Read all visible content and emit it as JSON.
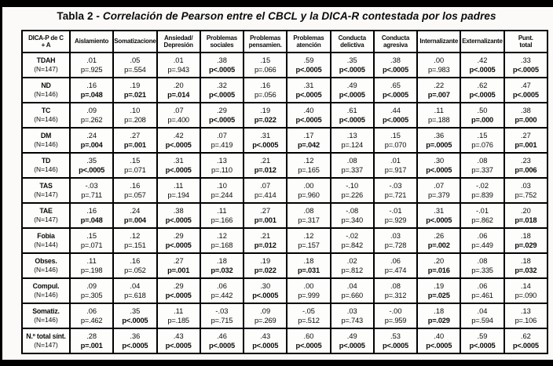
{
  "title": {
    "prefix": "Tabla 2 - ",
    "text": "Correlación de Pearson entre el CBCL y la DICA-R contestada por los padres"
  },
  "table": {
    "header": [
      "DICA-P de C\n+ A",
      "Aislamiento",
      "Somatizaciones",
      "Ansiedad/\nDepresión",
      "Problemas\nsociales",
      "Problemas\npensamien.",
      "Problemas\natención",
      "Conducta\ndelictiva",
      "Conducta\nagresiva",
      "Internalizante",
      "Externalizante",
      "Punt.\ntotal"
    ],
    "rows": [
      {
        "label": "TDAH",
        "n": "(N=147)",
        "cells": [
          {
            "r": ".01",
            "p": "p=.925",
            "sig": false
          },
          {
            "r": ".05",
            "p": "p=.554",
            "sig": false
          },
          {
            "r": ".01",
            "p": "p=.943",
            "sig": false
          },
          {
            "r": ".38",
            "p": "p<.0005",
            "sig": true
          },
          {
            "r": ".15",
            "p": "p=.066",
            "sig": false
          },
          {
            "r": ".59",
            "p": "p<.0005",
            "sig": true
          },
          {
            "r": ".35",
            "p": "p<.0005",
            "sig": true
          },
          {
            "r": ".38",
            "p": "p<.0005",
            "sig": true
          },
          {
            "r": ".00",
            "p": "p=.983",
            "sig": false
          },
          {
            "r": ".42",
            "p": "p<.0005",
            "sig": true
          },
          {
            "r": ".33",
            "p": "p<.0005",
            "sig": true
          }
        ]
      },
      {
        "label": "ND",
        "n": "(N=146)",
        "cells": [
          {
            "r": ".16",
            "p": "p=.048",
            "sig": true
          },
          {
            "r": ".19",
            "p": "p=.021",
            "sig": true
          },
          {
            "r": ".20",
            "p": "p=.014",
            "sig": true
          },
          {
            "r": ".32",
            "p": "p<.0005",
            "sig": true
          },
          {
            "r": ".16",
            "p": "p=.056",
            "sig": false
          },
          {
            "r": ".31",
            "p": "p<.0005",
            "sig": true
          },
          {
            "r": ".49",
            "p": "p<.0005",
            "sig": true
          },
          {
            "r": ".65",
            "p": "p<.0005",
            "sig": true
          },
          {
            "r": ".22",
            "p": "p=.007",
            "sig": true
          },
          {
            "r": ".62",
            "p": "p<.0005",
            "sig": true
          },
          {
            "r": ".47",
            "p": "p<.0005",
            "sig": true
          }
        ]
      },
      {
        "label": "TC",
        "n": "(N=146)",
        "cells": [
          {
            "r": ".09",
            "p": "p=.262",
            "sig": false
          },
          {
            "r": ".10",
            "p": "p=.208",
            "sig": false
          },
          {
            "r": ".07",
            "p": "p=.400",
            "sig": false
          },
          {
            "r": ".29",
            "p": "p<.0005",
            "sig": true
          },
          {
            "r": ".19",
            "p": "p=.022",
            "sig": true
          },
          {
            "r": ".40",
            "p": "p<.0005",
            "sig": true
          },
          {
            "r": ".61",
            "p": "p<.0005",
            "sig": true
          },
          {
            "r": ".44",
            "p": "p<.0005",
            "sig": true
          },
          {
            "r": ".11",
            "p": "p=.188",
            "sig": false
          },
          {
            "r": ".50",
            "p": "p=.000",
            "sig": true
          },
          {
            "r": ".38",
            "p": "p=.000",
            "sig": true
          }
        ]
      },
      {
        "label": "DM",
        "n": "(N=146)",
        "cells": [
          {
            "r": ".24",
            "p": "p=.004",
            "sig": true
          },
          {
            "r": ".27",
            "p": "p=.001",
            "sig": true
          },
          {
            "r": ".42",
            "p": "p<.0005",
            "sig": true
          },
          {
            "r": ".07",
            "p": "p=.419",
            "sig": false
          },
          {
            "r": ".31",
            "p": "p<.0005",
            "sig": true
          },
          {
            "r": ".17",
            "p": "p=.042",
            "sig": true
          },
          {
            "r": ".13",
            "p": "p=.124",
            "sig": false
          },
          {
            "r": ".15",
            "p": "p=.070",
            "sig": false
          },
          {
            "r": ".36",
            "p": "p=.0005",
            "sig": true
          },
          {
            "r": ".15",
            "p": "p=.076",
            "sig": false
          },
          {
            "r": ".27",
            "p": "p=.001",
            "sig": true
          }
        ]
      },
      {
        "label": "TD",
        "n": "(N=146)",
        "cells": [
          {
            "r": ".35",
            "p": "p<.0005",
            "sig": true
          },
          {
            "r": ".15",
            "p": "p=.071",
            "sig": false
          },
          {
            "r": ".31",
            "p": "p<.0005",
            "sig": true
          },
          {
            "r": ".13",
            "p": "p=.110",
            "sig": false
          },
          {
            "r": ".21",
            "p": "p=.012",
            "sig": true
          },
          {
            "r": ".12",
            "p": "p=.165",
            "sig": false
          },
          {
            "r": ".08",
            "p": "p=.337",
            "sig": false
          },
          {
            "r": ".01",
            "p": "p=.917",
            "sig": false
          },
          {
            "r": ".30",
            "p": "p<.0005",
            "sig": true
          },
          {
            "r": ".08",
            "p": "p=.337",
            "sig": false
          },
          {
            "r": ".23",
            "p": "p=.006",
            "sig": true
          }
        ]
      },
      {
        "label": "TAS",
        "n": "(N=147)",
        "cells": [
          {
            "r": "-.03",
            "p": "p=.711",
            "sig": false
          },
          {
            "r": ".16",
            "p": "p=.057",
            "sig": false
          },
          {
            "r": ".11",
            "p": "p=.194",
            "sig": false
          },
          {
            "r": ".10",
            "p": "p=.244",
            "sig": false
          },
          {
            "r": ".07",
            "p": "p=.414",
            "sig": false
          },
          {
            "r": ".00",
            "p": "p=.960",
            "sig": false
          },
          {
            "r": "-.10",
            "p": "p=.226",
            "sig": false
          },
          {
            "r": "-.03",
            "p": "p=.721",
            "sig": false
          },
          {
            "r": ".07",
            "p": "p=.379",
            "sig": false
          },
          {
            "r": "-.02",
            "p": "p=.839",
            "sig": false
          },
          {
            "r": ".03",
            "p": "p=.752",
            "sig": false
          }
        ]
      },
      {
        "label": "TAE",
        "n": "(N=147)",
        "cells": [
          {
            "r": ".16",
            "p": "p=.048",
            "sig": true
          },
          {
            "r": ".24",
            "p": "p=.004",
            "sig": true
          },
          {
            "r": ".38",
            "p": "p<.0005",
            "sig": true
          },
          {
            "r": ".11",
            "p": "p=.166",
            "sig": false
          },
          {
            "r": ".27",
            "p": "p=.001",
            "sig": true
          },
          {
            "r": ".08",
            "p": "p=.317",
            "sig": false
          },
          {
            "r": "-.08",
            "p": "p=.340",
            "sig": false
          },
          {
            "r": "-.01",
            "p": "p=.929",
            "sig": false
          },
          {
            "r": ".31",
            "p": "p<.0005",
            "sig": true
          },
          {
            "r": "-.01",
            "p": "p=.862",
            "sig": false
          },
          {
            "r": ".20",
            "p": "p=.018",
            "sig": true
          }
        ]
      },
      {
        "label": "Fobia",
        "n": "(N=144)",
        "cells": [
          {
            "r": ".15",
            "p": "p=.071",
            "sig": false
          },
          {
            "r": ".12",
            "p": "p=.151",
            "sig": false
          },
          {
            "r": ".29",
            "p": "p<.0005",
            "sig": true
          },
          {
            "r": ".12",
            "p": "p=.168",
            "sig": false
          },
          {
            "r": ".21",
            "p": "p=.012",
            "sig": true
          },
          {
            "r": ".12",
            "p": "p=.157",
            "sig": false
          },
          {
            "r": "-.02",
            "p": "p=.842",
            "sig": false
          },
          {
            "r": ".03",
            "p": "p=.728",
            "sig": false
          },
          {
            "r": ".26",
            "p": "p=.002",
            "sig": true
          },
          {
            "r": ".06",
            "p": "p=.449",
            "sig": false
          },
          {
            "r": ".18",
            "p": "p=.029",
            "sig": true
          }
        ]
      },
      {
        "label": "Obses.",
        "n": "(N=146)",
        "cells": [
          {
            "r": ".11",
            "p": "p=.198",
            "sig": false
          },
          {
            "r": ".16",
            "p": "p=.052",
            "sig": false
          },
          {
            "r": ".27",
            "p": "p=.001",
            "sig": true
          },
          {
            "r": ".18",
            "p": "p=.032",
            "sig": true
          },
          {
            "r": ".19",
            "p": "p=.022",
            "sig": true
          },
          {
            "r": ".18",
            "p": "p=.031",
            "sig": true
          },
          {
            "r": ".02",
            "p": "p=.812",
            "sig": false
          },
          {
            "r": ".06",
            "p": "p=.474",
            "sig": false
          },
          {
            "r": ".20",
            "p": "p=.016",
            "sig": true
          },
          {
            "r": ".08",
            "p": "p=.335",
            "sig": false
          },
          {
            "r": ".18",
            "p": "p=.032",
            "sig": true
          }
        ]
      },
      {
        "label": "Compul.",
        "n": "(N=146)",
        "cells": [
          {
            "r": ".09",
            "p": "p=.305",
            "sig": false
          },
          {
            "r": ".04",
            "p": "p=.618",
            "sig": false
          },
          {
            "r": ".29",
            "p": "p<.0005",
            "sig": true
          },
          {
            "r": ".06",
            "p": "p=.442",
            "sig": false
          },
          {
            "r": ".30",
            "p": "p<.0005",
            "sig": true
          },
          {
            "r": ".00",
            "p": "p=.999",
            "sig": false
          },
          {
            "r": ".04",
            "p": "p=.660",
            "sig": false
          },
          {
            "r": ".08",
            "p": "p=.312",
            "sig": false
          },
          {
            "r": ".19",
            "p": "p=.025",
            "sig": true
          },
          {
            "r": ".06",
            "p": "p=.461",
            "sig": false
          },
          {
            "r": ".14",
            "p": "p=.090",
            "sig": false
          }
        ]
      },
      {
        "label": "Somatiz.",
        "n": "(N=146)",
        "cells": [
          {
            "r": ".06",
            "p": "p=.462",
            "sig": false
          },
          {
            "r": ".35",
            "p": "p<.0005",
            "sig": true
          },
          {
            "r": ".11",
            "p": "p=.185",
            "sig": false
          },
          {
            "r": "-.03",
            "p": "p=.715",
            "sig": false
          },
          {
            "r": ".09",
            "p": "p=.269",
            "sig": false
          },
          {
            "r": "-.05",
            "p": "p=.512",
            "sig": false
          },
          {
            "r": ".03",
            "p": "p=.743",
            "sig": false
          },
          {
            "r": "-.00",
            "p": "p=.959",
            "sig": false
          },
          {
            "r": ".18",
            "p": "p=.029",
            "sig": true
          },
          {
            "r": ".04",
            "p": "p=.594",
            "sig": false
          },
          {
            "r": ".13",
            "p": "p=.106",
            "sig": false
          }
        ]
      },
      {
        "label": "N.º total sínt.",
        "n": "(N=147)",
        "cells": [
          {
            "r": ".28",
            "p": "p=.001",
            "sig": true
          },
          {
            "r": ".36",
            "p": "p<.0005",
            "sig": true
          },
          {
            "r": ".43",
            "p": "p<.0005",
            "sig": true
          },
          {
            "r": ".46",
            "p": "p<.0005",
            "sig": true
          },
          {
            "r": ".43",
            "p": "p<.0005",
            "sig": true
          },
          {
            "r": ".60",
            "p": "p<.0005",
            "sig": true
          },
          {
            "r": ".49",
            "p": "p<.0005",
            "sig": true
          },
          {
            "r": ".53",
            "p": "p<.0005",
            "sig": true
          },
          {
            "r": ".40",
            "p": "p<.0005",
            "sig": true
          },
          {
            "r": ".59",
            "p": "p<.0005",
            "sig": true
          },
          {
            "r": ".62",
            "p": "p<.0005",
            "sig": true
          }
        ]
      }
    ]
  }
}
